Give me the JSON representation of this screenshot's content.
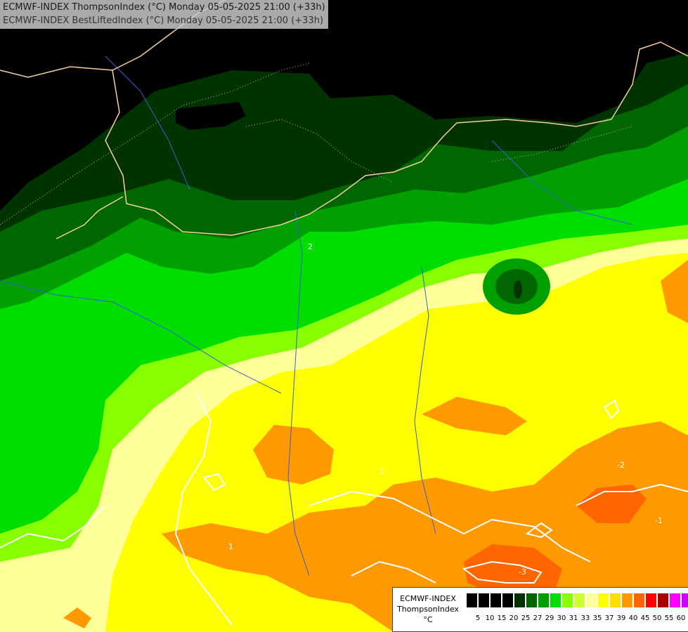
{
  "title": {
    "line1": "ECMWF-INDEX ThompsonIndex (°C) Monday 05-05-2025 21:00 (+33h)",
    "line2": "ECMWF-INDEX BestLiftedIndex (°C) Monday 05-05-2025 21:00 (+33h)"
  },
  "legend": {
    "model": "ECMWF-INDEX",
    "variable": "ThompsonIndex",
    "unit": "°C",
    "colors": [
      "#000000",
      "#000000",
      "#000000",
      "#000000",
      "#003300",
      "#006600",
      "#00a000",
      "#00dd00",
      "#88ff00",
      "#ccff33",
      "#ffff99",
      "#ffff00",
      "#ffdd00",
      "#ff9900",
      "#ff6600",
      "#ff0000",
      "#aa0000",
      "#ff00ff",
      "#cc00ff",
      "#7700ee",
      "#0000ff"
    ],
    "ticks": [
      "5",
      "10",
      "15",
      "20",
      "25",
      "27",
      "29",
      "30",
      "31",
      "33",
      "35",
      "37",
      "39",
      "40",
      "45",
      "50",
      "55",
      "60"
    ]
  },
  "contour_labels": [
    "2",
    "1",
    "-1",
    "-2",
    "-3",
    "1"
  ],
  "colors": {
    "black": "#000000",
    "dark_green": "#003300",
    "mid_green": "#006600",
    "green": "#00a000",
    "bright_green": "#00dd00",
    "lime": "#88ff00",
    "pale_yellow": "#ffff99",
    "yellow": "#ffff00",
    "orange": "#ff9900",
    "dark_orange": "#ff6600",
    "border": "#f4cfa0",
    "river": "#3a5fd0",
    "contour": "#ffffff"
  }
}
